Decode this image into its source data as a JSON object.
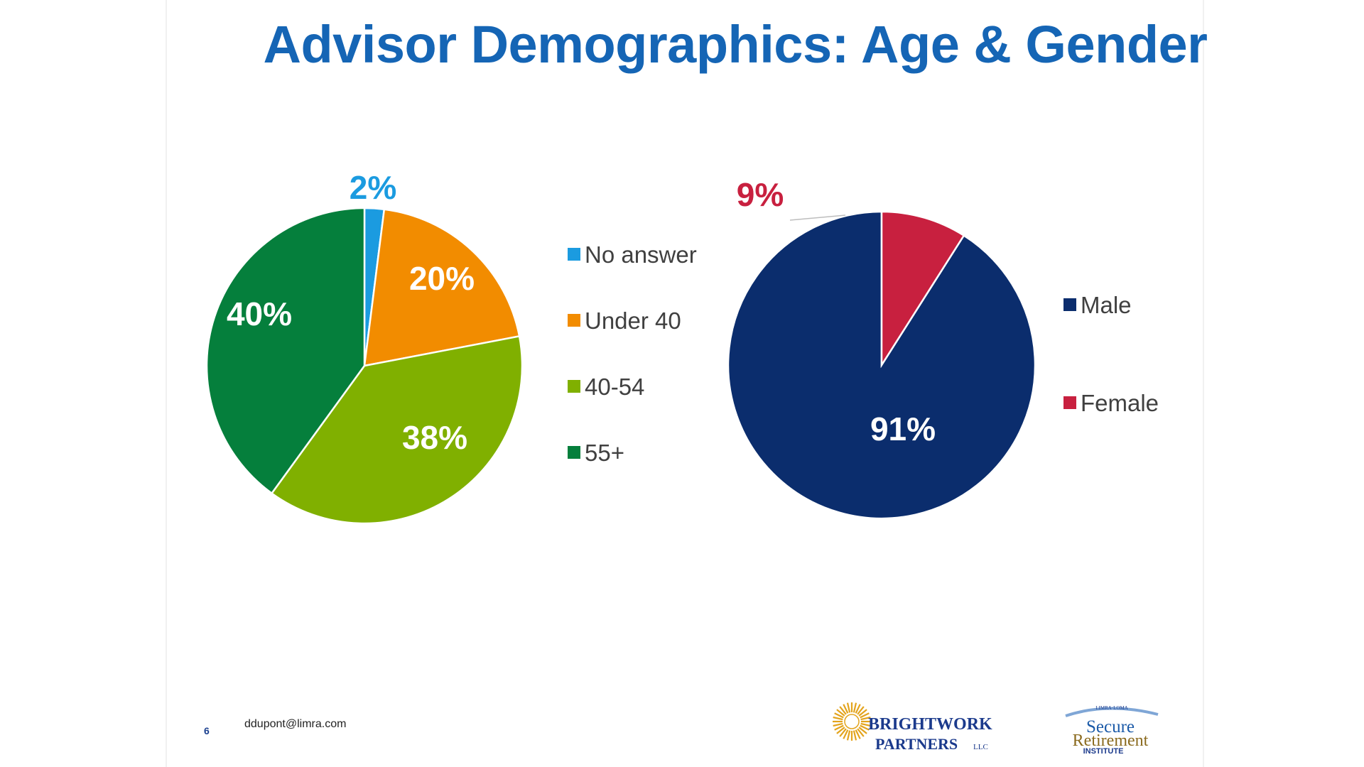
{
  "slide": {
    "title": "Advisor Demographics:  Age & Gender",
    "page_number": "6",
    "footer_email": "ddupont@limra.com",
    "logos": {
      "brightwork": {
        "line1": "BRIGHTWORK",
        "line2": "PARTNERS",
        "suffix": "LLC"
      },
      "sri": {
        "top": "LIMRA·LOMA",
        "line1": "Secure",
        "line2": "Retirement",
        "line3": "INSTITUTE"
      }
    }
  },
  "chart_data": [
    {
      "type": "pie",
      "title": "",
      "slices": [
        {
          "label": "No answer",
          "value": 2,
          "display": "2%",
          "color": "#1b9be0",
          "label_color": "#1b9be0"
        },
        {
          "label": "Under 40",
          "value": 20,
          "display": "20%",
          "color": "#f28c00",
          "label_color": "#ffffff"
        },
        {
          "label": "40-54",
          "value": 38,
          "display": "38%",
          "color": "#80b000",
          "label_color": "#ffffff"
        },
        {
          "label": "55+",
          "value": 40,
          "display": "40%",
          "color": "#057f3c",
          "label_color": "#ffffff"
        }
      ],
      "legend_position": "right"
    },
    {
      "type": "pie",
      "title": "",
      "slices": [
        {
          "label": "Male",
          "value": 91,
          "display": "91%",
          "color": "#0b2d6d",
          "label_color": "#ffffff"
        },
        {
          "label": "Female",
          "value": 9,
          "display": "9%",
          "color": "#c8203f",
          "label_color": "#c8203f"
        }
      ],
      "legend_position": "right",
      "start": "counterclockwise"
    }
  ]
}
